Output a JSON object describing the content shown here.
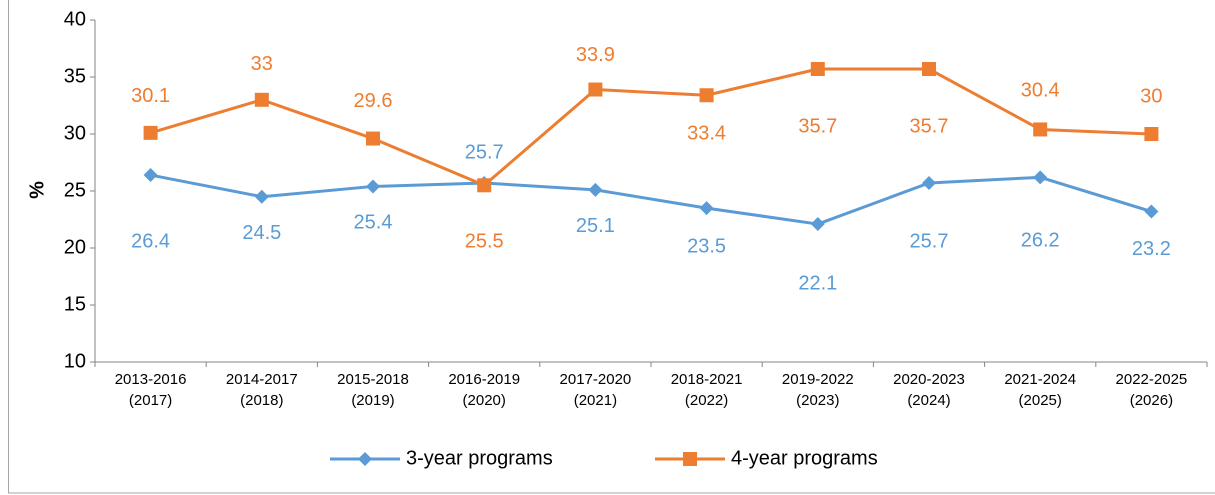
{
  "chart_data": {
    "type": "line",
    "ylabel": "%",
    "categories": [
      [
        "2013-2016",
        "(2017)"
      ],
      [
        "2014-2017",
        "(2018)"
      ],
      [
        "2015-2018",
        "(2019)"
      ],
      [
        "2016-2019",
        "(2020)"
      ],
      [
        "2017-2020",
        "(2021)"
      ],
      [
        "2018-2021",
        "(2022)"
      ],
      [
        "2019-2022",
        "(2023)"
      ],
      [
        "2020-2023",
        "(2024)"
      ],
      [
        "2021-2024",
        "(2025)"
      ],
      [
        "2022-2025",
        "(2026)"
      ]
    ],
    "series": [
      {
        "name": "3-year programs",
        "color": "#5b9bd5",
        "marker": "diamond",
        "values": [
          26.4,
          24.5,
          25.4,
          25.7,
          25.1,
          23.5,
          22.1,
          25.7,
          26.2,
          23.2
        ]
      },
      {
        "name": "4-year programs",
        "color": "#ed7d31",
        "marker": "square",
        "values": [
          30.1,
          33,
          29.6,
          25.5,
          33.9,
          33.4,
          35.7,
          35.7,
          30.4,
          30
        ]
      }
    ],
    "ylim": [
      10,
      40
    ],
    "yticks": [
      10,
      15,
      20,
      25,
      30,
      35,
      40
    ],
    "grid": false,
    "legend": "bottom"
  }
}
